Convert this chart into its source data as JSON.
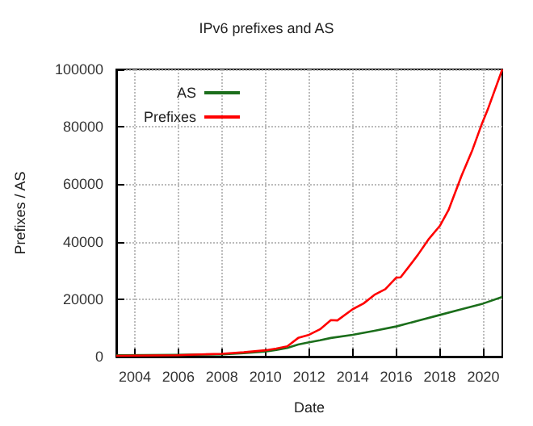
{
  "chart_data": {
    "type": "line",
    "title": "IPv6 prefixes and AS",
    "xlabel": "Date",
    "ylabel": "Prefixes / AS",
    "series": [
      {
        "name": "AS",
        "color": "#1b6e1b",
        "x": [
          2003.15,
          2006,
          2008,
          2009,
          2010,
          2010.5,
          2011,
          2011.5,
          2012,
          2012.5,
          2013,
          2014,
          2015,
          2016,
          2017,
          2018,
          2019,
          2020,
          2020.87
        ],
        "values": [
          500,
          600,
          800,
          1200,
          1800,
          2300,
          3000,
          4200,
          5000,
          5700,
          6500,
          7600,
          9000,
          10500,
          12500,
          14500,
          16500,
          18500,
          20800
        ]
      },
      {
        "name": "Prefixes",
        "color": "#ff0000",
        "x": [
          2003.15,
          2006,
          2008,
          2009,
          2010,
          2010.5,
          2011,
          2011.5,
          2012,
          2012.5,
          2013,
          2013.3,
          2014,
          2014.5,
          2015,
          2015.5,
          2016,
          2016.2,
          2016.6,
          2017,
          2017.5,
          2018,
          2018.4,
          2019,
          2019.5,
          2019.93,
          2020.2,
          2020.87
        ],
        "values": [
          300,
          500,
          1000,
          1500,
          2200,
          2800,
          3600,
          6500,
          7600,
          9500,
          12700,
          12600,
          16500,
          18500,
          21500,
          23500,
          27500,
          27600,
          31500,
          35500,
          41000,
          45500,
          51000,
          63000,
          72000,
          81000,
          86000,
          100000
        ]
      }
    ],
    "xlim": [
      2003.15,
      2020.87
    ],
    "xticks": [
      2004,
      2006,
      2008,
      2010,
      2012,
      2014,
      2016,
      2018,
      2020
    ],
    "ylim": [
      0,
      100000
    ],
    "yticks": [
      0,
      20000,
      40000,
      60000,
      80000,
      100000
    ],
    "grid": true,
    "legend": "top left",
    "marker": "none",
    "line_style": "solid"
  }
}
